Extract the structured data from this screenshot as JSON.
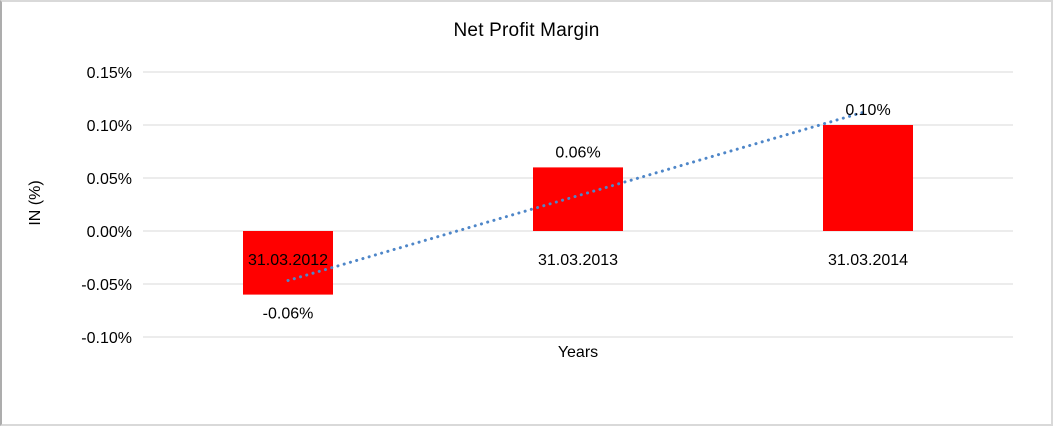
{
  "frame": {
    "background": "#ffffff",
    "border_color": "#d9d9d9"
  },
  "chart_data": {
    "type": "bar",
    "title": "Net Profit Margin",
    "xlabel": "Years",
    "ylabel": "IN (%)",
    "categories": [
      "31.03.2012",
      "31.03.2013",
      "31.03.2014"
    ],
    "values": [
      -0.06,
      0.06,
      0.1
    ],
    "data_labels": [
      "-0.06%",
      "0.06%",
      "0.10%"
    ],
    "yticks": [
      {
        "value": 0.15,
        "label": "0.15%"
      },
      {
        "value": 0.1,
        "label": "0.10%"
      },
      {
        "value": 0.05,
        "label": "0.05%"
      },
      {
        "value": 0.0,
        "label": "0.00%"
      },
      {
        "value": -0.05,
        "label": "-0.05%"
      },
      {
        "value": -0.1,
        "label": "-0.10%"
      }
    ],
    "ylim": [
      -0.1,
      0.15
    ],
    "grid": "horizontal",
    "legend": "none",
    "bar_color": "#ff0000",
    "gridline_color": "#d9d9d9",
    "text_color": "#000000",
    "trendline": {
      "type": "linear",
      "style": "dotted",
      "color": "#4e86c8",
      "start_value": -0.0467,
      "end_value": 0.1133
    }
  }
}
